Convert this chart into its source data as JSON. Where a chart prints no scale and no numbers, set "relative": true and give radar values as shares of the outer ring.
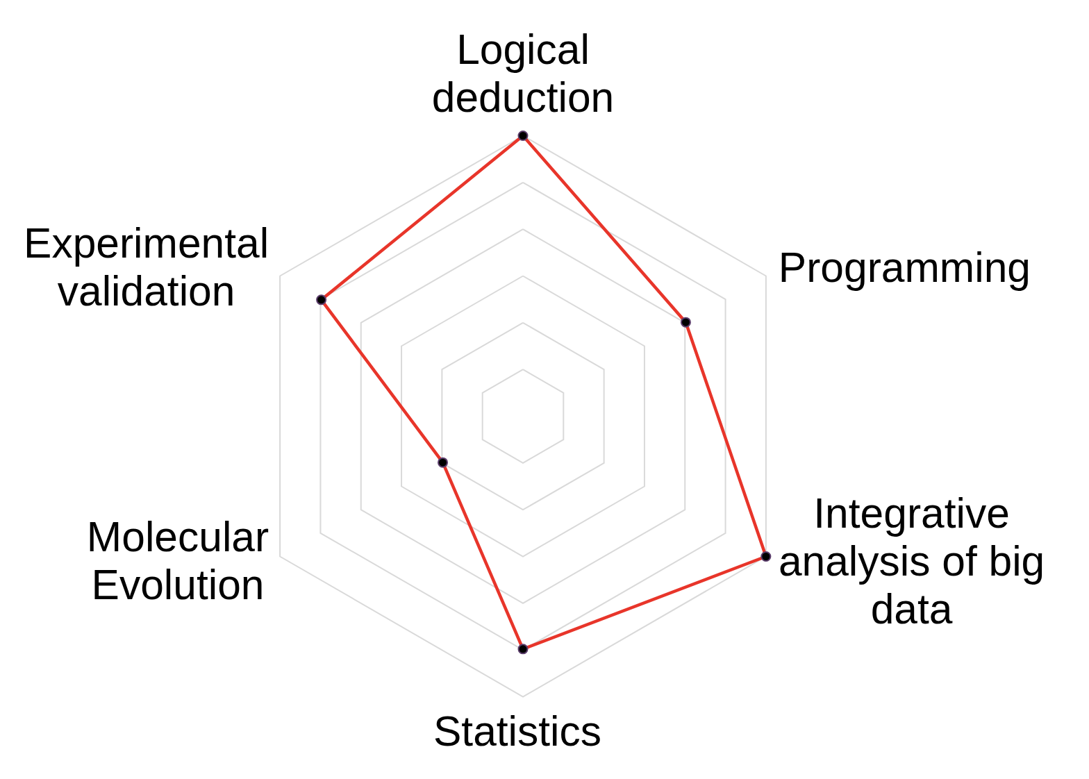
{
  "chart_data": {
    "type": "radar",
    "relative": true,
    "grid": true,
    "legend": false,
    "marker": "circle",
    "line_style": "solid",
    "categories": [
      "Logical deduction",
      "Programming",
      "Integrative analysis of big data",
      "Statistics",
      "Molecular Evolution",
      "Experimental validation"
    ],
    "series": [
      {
        "color": "#e8352a",
        "values": [
          1,
          0.67,
          1,
          0.83,
          0.33,
          0.83
        ]
      }
    ]
  }
}
